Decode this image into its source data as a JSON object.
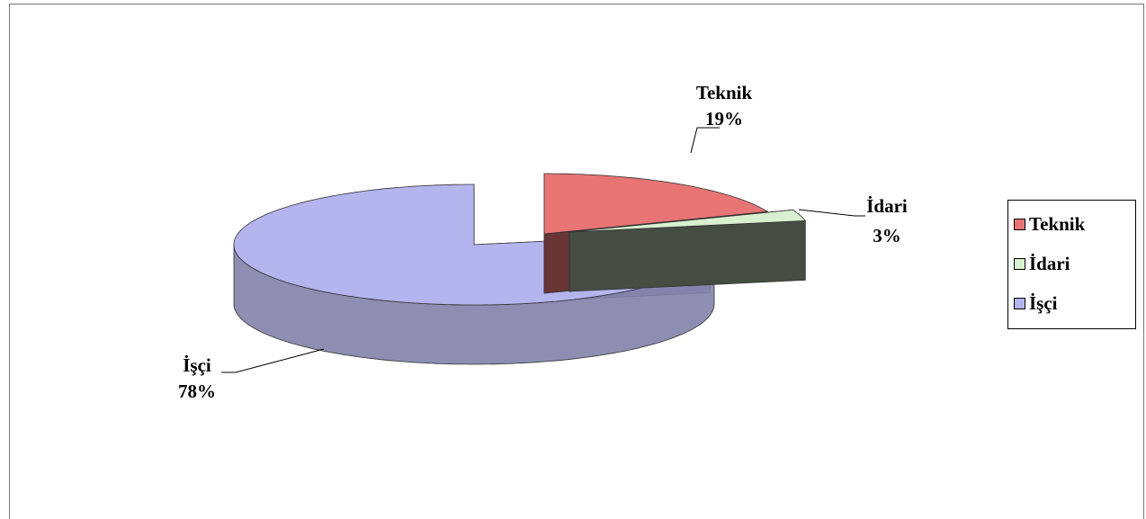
{
  "chart_data": {
    "type": "pie3d",
    "categories": [
      "Teknik",
      "İdari",
      "İşçi"
    ],
    "values": [
      19,
      3,
      78
    ],
    "value_labels": [
      "19%",
      "3%",
      "78%"
    ],
    "colors": [
      "#e87474",
      "#d8f0d0",
      "#b4b4ee"
    ],
    "legend": "right"
  }
}
